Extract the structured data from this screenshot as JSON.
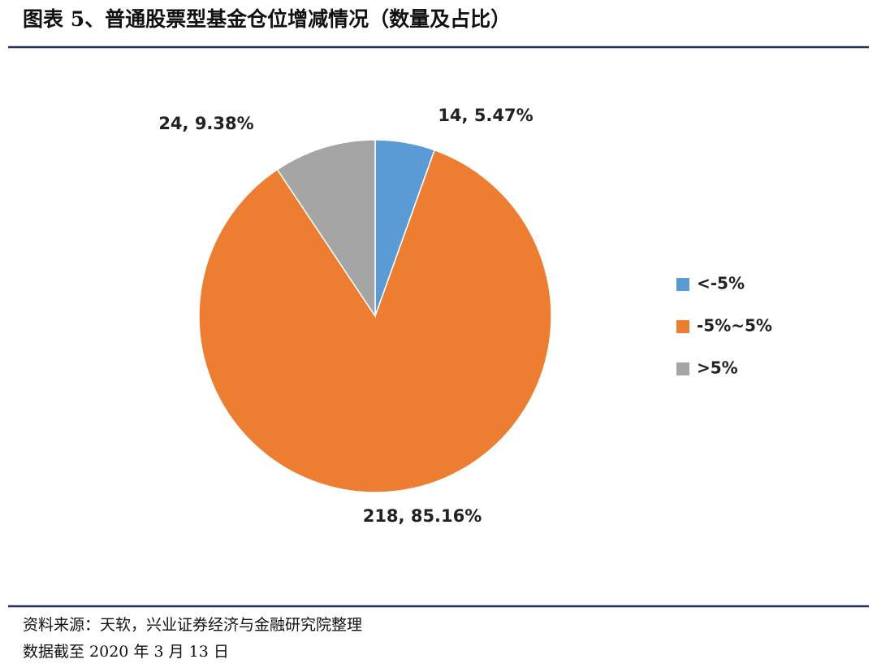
{
  "chart_data": {
    "type": "pie",
    "title": "图表 5、普通股票型基金仓位增减情况（数量及占比）",
    "categories": [
      "<-5%",
      "-5%~5%",
      ">5%"
    ],
    "values": [
      14,
      218,
      24
    ],
    "value_labels": [
      "14, 5.47%",
      "218, 85.16%",
      "24, 9.38%"
    ],
    "colors": [
      "#5b9bd5",
      "#ed7d31",
      "#a5a5a5"
    ],
    "legend": "right",
    "source": "资料来源：天软，兴业证券经济与金融研究院整理",
    "note": "数据截至 2020 年 3 月 13 日"
  }
}
